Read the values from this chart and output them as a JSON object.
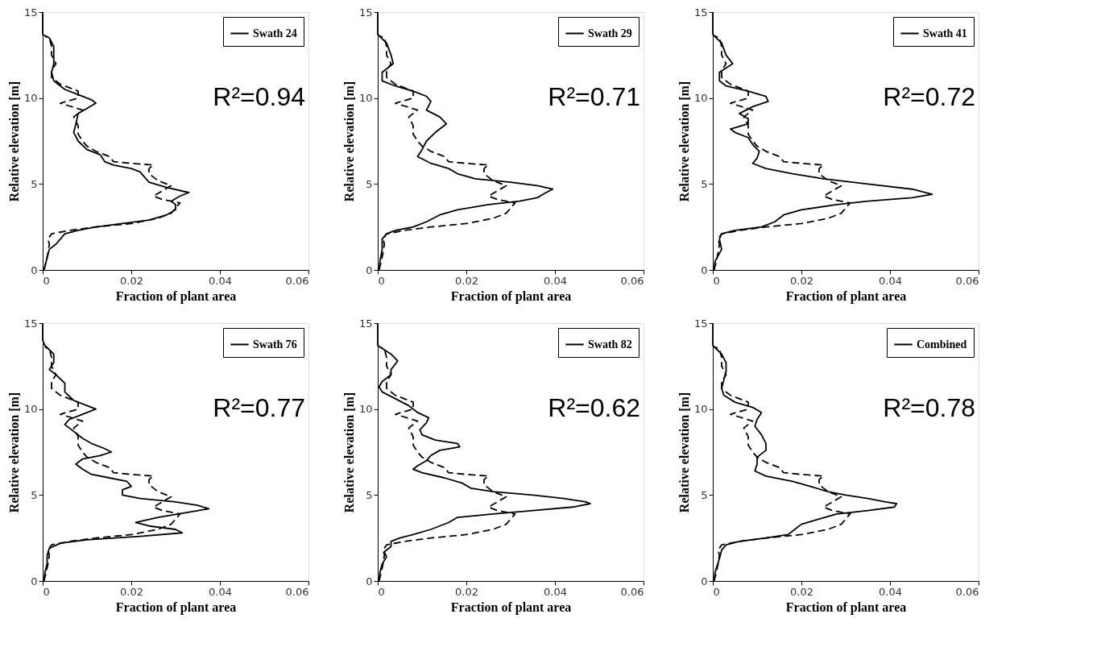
{
  "chart_data": [
    {
      "type": "line",
      "xlabel": "Fraction of plant area",
      "ylabel": "Relative elevation [m]",
      "xlim": [
        0,
        0.06
      ],
      "ylim": [
        0,
        15
      ],
      "xticks": [
        0,
        0.02,
        0.04,
        0.06
      ],
      "yticks": [
        0,
        5,
        10,
        15
      ],
      "legend": "top right",
      "annotations": [
        "R²=0.94"
      ],
      "series": [
        {
          "name": "Swath 24",
          "color": "#000000",
          "line_style": "solid",
          "x": [
            0,
            0,
            0.0015,
            0.0025,
            0.0025,
            0.0025,
            0.002,
            0.0025,
            0.005,
            0.008,
            0.011,
            0.012,
            0.01,
            0.008,
            0.0075,
            0.007,
            0.008,
            0.01,
            0.013,
            0.014,
            0.016,
            0.02,
            0.022,
            0.023,
            0.024,
            0.028,
            0.033,
            0.031,
            0.029,
            0.03,
            0.03,
            0.028,
            0.024,
            0.018,
            0.012,
            0.008,
            0.005,
            0.004,
            0.003,
            0.0015,
            0.0008,
            0.0003
          ],
          "values": [
            15,
            13.7,
            13.5,
            13,
            12.5,
            12,
            11.5,
            11,
            10.5,
            10.2,
            9.9,
            9.7,
            9.4,
            9.1,
            8.5,
            8,
            7.5,
            7,
            6.7,
            6.3,
            6.1,
            5.9,
            5.7,
            5.4,
            5.1,
            4.8,
            4.5,
            4.3,
            4,
            3.8,
            3.5,
            3.2,
            2.9,
            2.7,
            2.5,
            2.3,
            2.1,
            1.8,
            1.5,
            1.2,
            0.5,
            0
          ]
        },
        {
          "color": "#000000",
          "line_style": "dashed",
          "x": [
            0.0003,
            0.0008,
            0.0012,
            0.0015,
            0.0012,
            0.002,
            0.006,
            0.012,
            0.02,
            0.026,
            0.029,
            0.03,
            0.031,
            0.027,
            0.025,
            0.027,
            0.029,
            0.026,
            0.024,
            0.024,
            0.025,
            0.02,
            0.016,
            0.015,
            0.012,
            0.01,
            0.009,
            0.008,
            0.008,
            0.007,
            0.009,
            0.004,
            0.008,
            0.008,
            0.004,
            0.002,
            0.002,
            0.003,
            0.002,
            0.002,
            0.0015,
            0.0005
          ],
          "values": [
            0,
            0.5,
            1,
            1.5,
            1.8,
            2.1,
            2.3,
            2.5,
            2.7,
            3,
            3.3,
            3.6,
            3.9,
            4.1,
            4.3,
            4.6,
            4.9,
            5.2,
            5.6,
            5.9,
            6.1,
            6.2,
            6.3,
            6.6,
            6.9,
            7.2,
            7.5,
            7.9,
            8.4,
            8.9,
            9.3,
            9.7,
            10,
            10.4,
            10.8,
            11.2,
            11.6,
            12,
            12.5,
            13,
            13.5,
            13.6
          ]
        }
      ]
    },
    {
      "type": "line",
      "xlabel": "Fraction of plant area",
      "ylabel": "Relative elevation [m]",
      "xlim": [
        0,
        0.06
      ],
      "ylim": [
        0,
        15
      ],
      "xticks": [
        0,
        0.02,
        0.04,
        0.06
      ],
      "yticks": [
        0,
        5,
        10,
        15
      ],
      "legend": "top right",
      "annotations": [
        "R²=0.71"
      ],
      "series": [
        {
          "name": "Swath 29",
          "color": "#000000",
          "line_style": "solid",
          "x": [
            0,
            0,
            0.002,
            0.003,
            0.0035,
            0.001,
            0.001,
            0.004,
            0.008,
            0.011,
            0.012,
            0.011,
            0.014,
            0.0155,
            0.013,
            0.011,
            0.01,
            0.009,
            0.012,
            0.016,
            0.018,
            0.022,
            0.03,
            0.036,
            0.0395,
            0.038,
            0.036,
            0.032,
            0.025,
            0.018,
            0.014,
            0.011,
            0.008,
            0.004,
            0.002,
            0.001,
            0.001,
            0.0005,
            0.0003
          ],
          "values": [
            15,
            13.7,
            13.2,
            12.5,
            12,
            11.5,
            11,
            10.7,
            10.4,
            10.1,
            9.8,
            9.3,
            8.9,
            8.5,
            8,
            7.5,
            7,
            6.6,
            6.2,
            5.9,
            5.6,
            5.3,
            5.1,
            4.9,
            4.7,
            4.5,
            4.2,
            4,
            3.8,
            3.5,
            3.2,
            2.8,
            2.5,
            2.3,
            2.1,
            1.8,
            1.2,
            0.5,
            0
          ]
        },
        {
          "color": "#000000",
          "line_style": "dashed",
          "x": [
            0.0003,
            0.0008,
            0.0012,
            0.0015,
            0.0012,
            0.002,
            0.006,
            0.012,
            0.02,
            0.026,
            0.029,
            0.03,
            0.031,
            0.027,
            0.025,
            0.027,
            0.029,
            0.026,
            0.024,
            0.024,
            0.025,
            0.02,
            0.016,
            0.015,
            0.012,
            0.01,
            0.009,
            0.008,
            0.008,
            0.007,
            0.009,
            0.004,
            0.008,
            0.008,
            0.004,
            0.002,
            0.002,
            0.003,
            0.002,
            0.002,
            0.0015,
            0.0005
          ],
          "values": [
            0,
            0.5,
            1,
            1.5,
            1.8,
            2.1,
            2.3,
            2.5,
            2.7,
            3,
            3.3,
            3.6,
            3.9,
            4.1,
            4.3,
            4.6,
            4.9,
            5.2,
            5.6,
            5.9,
            6.1,
            6.2,
            6.3,
            6.6,
            6.9,
            7.2,
            7.5,
            7.9,
            8.4,
            8.9,
            9.3,
            9.7,
            10,
            10.4,
            10.8,
            11.2,
            11.6,
            12,
            12.5,
            13,
            13.5,
            13.6
          ]
        }
      ]
    },
    {
      "type": "line",
      "xlabel": "Fraction of plant area",
      "ylabel": "Relative elevation [m]",
      "xlim": [
        0,
        0.06
      ],
      "ylim": [
        0,
        15
      ],
      "xticks": [
        0,
        0.02,
        0.04,
        0.06
      ],
      "yticks": [
        0,
        5,
        10,
        15
      ],
      "legend": "top right",
      "annotations": [
        "R²=0.72"
      ],
      "series": [
        {
          "name": "Swath 41",
          "color": "#000000",
          "line_style": "solid",
          "x": [
            0,
            0,
            0.002,
            0.003,
            0.0045,
            0.0015,
            0.0015,
            0.003,
            0.008,
            0.012,
            0.0125,
            0.009,
            0.006,
            0.008,
            0.008,
            0.004,
            0.005,
            0.008,
            0.009,
            0.0105,
            0.01,
            0.009,
            0.012,
            0.018,
            0.025,
            0.035,
            0.045,
            0.0495,
            0.045,
            0.035,
            0.028,
            0.02,
            0.016,
            0.014,
            0.011,
            0.005,
            0.002,
            0.0015,
            0.002,
            0.0005,
            0.0003
          ],
          "values": [
            15,
            13.7,
            13.2,
            12.5,
            12,
            11.5,
            11,
            10.7,
            10.4,
            10.1,
            9.8,
            9.5,
            9.1,
            8.8,
            8.5,
            8.2,
            8,
            7.7,
            7.3,
            6.9,
            6.5,
            6.2,
            5.9,
            5.6,
            5.3,
            5,
            4.7,
            4.4,
            4.2,
            4,
            3.8,
            3.5,
            3.2,
            2.8,
            2.5,
            2.3,
            2.1,
            1.8,
            1.2,
            0.5,
            0
          ]
        },
        {
          "color": "#000000",
          "line_style": "dashed",
          "x": [
            0.0003,
            0.0008,
            0.0012,
            0.0015,
            0.0012,
            0.002,
            0.006,
            0.012,
            0.02,
            0.026,
            0.029,
            0.03,
            0.031,
            0.027,
            0.025,
            0.027,
            0.029,
            0.026,
            0.024,
            0.024,
            0.025,
            0.02,
            0.016,
            0.015,
            0.012,
            0.01,
            0.009,
            0.008,
            0.008,
            0.007,
            0.009,
            0.004,
            0.008,
            0.008,
            0.004,
            0.002,
            0.002,
            0.003,
            0.002,
            0.002,
            0.0015,
            0.0005
          ],
          "values": [
            0,
            0.5,
            1,
            1.5,
            1.8,
            2.1,
            2.3,
            2.5,
            2.7,
            3,
            3.3,
            3.6,
            3.9,
            4.1,
            4.3,
            4.6,
            4.9,
            5.2,
            5.6,
            5.9,
            6.1,
            6.2,
            6.3,
            6.6,
            6.9,
            7.2,
            7.5,
            7.9,
            8.4,
            8.9,
            9.3,
            9.7,
            10,
            10.4,
            10.8,
            11.2,
            11.6,
            12,
            12.5,
            13,
            13.5,
            13.6
          ]
        }
      ]
    },
    {
      "type": "line",
      "xlabel": "Fraction of plant area",
      "ylabel": "Relative elevation [m]",
      "xlim": [
        0,
        0.06
      ],
      "ylim": [
        0,
        15
      ],
      "xticks": [
        0,
        0.02,
        0.04,
        0.06
      ],
      "yticks": [
        0,
        5,
        10,
        15
      ],
      "legend": "top right",
      "annotations": [
        "R²=0.77"
      ],
      "series": [
        {
          "name": "Swath 76",
          "color": "#000000",
          "line_style": "solid",
          "x": [
            0,
            0,
            0.0005,
            0.0025,
            0.0025,
            0.0015,
            0.003,
            0.005,
            0.005,
            0.007,
            0.01,
            0.012,
            0.009,
            0.006,
            0.005,
            0.007,
            0.009,
            0.011,
            0.014,
            0.0155,
            0.013,
            0.009,
            0.0075,
            0.009,
            0.011,
            0.015,
            0.019,
            0.02,
            0.018,
            0.018,
            0.022,
            0.03,
            0.035,
            0.0375,
            0.033,
            0.026,
            0.021,
            0.024,
            0.03,
            0.0315,
            0.022,
            0.01,
            0.004,
            0.0015,
            0.001,
            0.001,
            0.0005,
            0.0003
          ],
          "values": [
            15,
            14,
            13.7,
            13.2,
            12.7,
            12.3,
            12,
            11.5,
            11,
            10.5,
            10.2,
            10,
            9.7,
            9.4,
            9.1,
            8.7,
            8.3,
            8,
            7.7,
            7.5,
            7.3,
            7.1,
            6.8,
            6.5,
            6.2,
            6,
            5.8,
            5.5,
            5.3,
            5,
            4.8,
            4.6,
            4.4,
            4.2,
            4,
            3.7,
            3.4,
            3.2,
            3,
            2.8,
            2.6,
            2.4,
            2.2,
            1.9,
            1.5,
            1,
            0.5,
            0
          ]
        },
        {
          "color": "#000000",
          "line_style": "dashed",
          "x": [
            0.0003,
            0.0008,
            0.0012,
            0.0015,
            0.0012,
            0.002,
            0.006,
            0.012,
            0.02,
            0.026,
            0.029,
            0.03,
            0.031,
            0.027,
            0.025,
            0.027,
            0.029,
            0.026,
            0.024,
            0.024,
            0.025,
            0.02,
            0.016,
            0.015,
            0.012,
            0.01,
            0.009,
            0.008,
            0.008,
            0.007,
            0.009,
            0.004,
            0.008,
            0.008,
            0.004,
            0.002,
            0.002,
            0.003,
            0.002,
            0.002,
            0.0015,
            0.0005
          ],
          "values": [
            0,
            0.5,
            1,
            1.5,
            1.8,
            2.1,
            2.3,
            2.5,
            2.7,
            3,
            3.3,
            3.6,
            3.9,
            4.1,
            4.3,
            4.6,
            4.9,
            5.2,
            5.6,
            5.9,
            6.1,
            6.2,
            6.3,
            6.6,
            6.9,
            7.2,
            7.5,
            7.9,
            8.4,
            8.9,
            9.3,
            9.7,
            10,
            10.4,
            10.8,
            11.2,
            11.6,
            12,
            12.5,
            13,
            13.5,
            13.6
          ]
        }
      ]
    },
    {
      "type": "line",
      "xlabel": "Fraction of plant area",
      "ylabel": "Relative elevation [m]",
      "xlim": [
        0,
        0.06
      ],
      "ylim": [
        0,
        15
      ],
      "xticks": [
        0,
        0.02,
        0.04,
        0.06
      ],
      "yticks": [
        0,
        5,
        10,
        15
      ],
      "legend": "top right",
      "annotations": [
        "R²=0.62"
      ],
      "series": [
        {
          "name": "Swath 82",
          "color": "#000000",
          "line_style": "solid",
          "x": [
            0,
            0,
            0.003,
            0.0045,
            0.003,
            0.003,
            0.001,
            0.0003,
            0.001,
            0.004,
            0.007,
            0.009,
            0.0115,
            0.011,
            0.0095,
            0.01,
            0.013,
            0.018,
            0.0185,
            0.014,
            0.012,
            0.011,
            0.009,
            0.008,
            0.01,
            0.015,
            0.019,
            0.021,
            0.026,
            0.035,
            0.042,
            0.047,
            0.048,
            0.044,
            0.035,
            0.026,
            0.018,
            0.016,
            0.012,
            0.008,
            0.005,
            0.003,
            0.003,
            0.0015,
            0.002,
            0.001,
            0.0005,
            0.0003
          ],
          "values": [
            15,
            13.7,
            13.2,
            12.8,
            12.3,
            12,
            11.6,
            11.3,
            11,
            10.6,
            10.2,
            9.8,
            9.5,
            9.2,
            8.8,
            8.5,
            8.2,
            8,
            7.8,
            7.6,
            7.3,
            7,
            6.7,
            6.5,
            6.3,
            6,
            5.7,
            5.4,
            5.2,
            5,
            4.8,
            4.6,
            4.5,
            4.3,
            4.1,
            3.9,
            3.7,
            3.4,
            3,
            2.7,
            2.5,
            2.3,
            2,
            1.7,
            1.4,
            1,
            0.5,
            0
          ]
        },
        {
          "color": "#000000",
          "line_style": "dashed",
          "x": [
            0.0003,
            0.0008,
            0.0012,
            0.0015,
            0.0012,
            0.002,
            0.006,
            0.012,
            0.02,
            0.026,
            0.029,
            0.03,
            0.031,
            0.027,
            0.025,
            0.027,
            0.029,
            0.026,
            0.024,
            0.024,
            0.025,
            0.02,
            0.016,
            0.015,
            0.012,
            0.01,
            0.009,
            0.008,
            0.008,
            0.007,
            0.009,
            0.004,
            0.008,
            0.008,
            0.004,
            0.002,
            0.002,
            0.003,
            0.002,
            0.002,
            0.0015,
            0.0005
          ],
          "values": [
            0,
            0.5,
            1,
            1.5,
            1.8,
            2.1,
            2.3,
            2.5,
            2.7,
            3,
            3.3,
            3.6,
            3.9,
            4.1,
            4.3,
            4.6,
            4.9,
            5.2,
            5.6,
            5.9,
            6.1,
            6.2,
            6.3,
            6.6,
            6.9,
            7.2,
            7.5,
            7.9,
            8.4,
            8.9,
            9.3,
            9.7,
            10,
            10.4,
            10.8,
            11.2,
            11.6,
            12,
            12.5,
            13,
            13.5,
            13.6
          ]
        }
      ]
    },
    {
      "type": "line",
      "xlabel": "Fraction of plant area",
      "ylabel": "Relative elevation [m]",
      "xlim": [
        0,
        0.06
      ],
      "ylim": [
        0,
        15
      ],
      "xticks": [
        0,
        0.02,
        0.04,
        0.06
      ],
      "yticks": [
        0,
        5,
        10,
        15
      ],
      "legend": "top right",
      "annotations": [
        "R²=0.78"
      ],
      "series": [
        {
          "name": "Combined",
          "color": "#000000",
          "line_style": "solid",
          "x": [
            0,
            0,
            0.002,
            0.003,
            0.003,
            0.0025,
            0.002,
            0.0025,
            0.005,
            0.009,
            0.011,
            0.01,
            0.0095,
            0.011,
            0.012,
            0.012,
            0.01,
            0.01,
            0.0095,
            0.012,
            0.018,
            0.022,
            0.026,
            0.03,
            0.035,
            0.039,
            0.0415,
            0.041,
            0.035,
            0.028,
            0.024,
            0.02,
            0.0185,
            0.017,
            0.012,
            0.006,
            0.003,
            0.002,
            0.0015,
            0.0005,
            0.0003
          ],
          "values": [
            15,
            13.7,
            13.2,
            12.7,
            12.2,
            11.7,
            11.2,
            10.8,
            10.4,
            10.1,
            9.8,
            9.4,
            9,
            8.5,
            8,
            7.6,
            7.2,
            6.8,
            6.4,
            6.1,
            5.8,
            5.5,
            5.2,
            5,
            4.8,
            4.6,
            4.5,
            4.3,
            4.1,
            3.9,
            3.6,
            3.3,
            3,
            2.7,
            2.5,
            2.3,
            2.1,
            1.8,
            1.3,
            0.5,
            0
          ]
        },
        {
          "color": "#000000",
          "line_style": "dashed",
          "x": [
            0.0003,
            0.0008,
            0.0012,
            0.0015,
            0.0012,
            0.002,
            0.006,
            0.012,
            0.02,
            0.026,
            0.029,
            0.03,
            0.031,
            0.027,
            0.025,
            0.027,
            0.029,
            0.026,
            0.024,
            0.024,
            0.025,
            0.02,
            0.016,
            0.015,
            0.012,
            0.01,
            0.009,
            0.008,
            0.008,
            0.007,
            0.009,
            0.004,
            0.008,
            0.008,
            0.004,
            0.002,
            0.002,
            0.003,
            0.002,
            0.002,
            0.0015,
            0.0005
          ],
          "values": [
            0,
            0.5,
            1,
            1.5,
            1.8,
            2.1,
            2.3,
            2.5,
            2.7,
            3,
            3.3,
            3.6,
            3.9,
            4.1,
            4.3,
            4.6,
            4.9,
            5.2,
            5.6,
            5.9,
            6.1,
            6.2,
            6.3,
            6.6,
            6.9,
            7.2,
            7.5,
            7.9,
            8.4,
            8.9,
            9.3,
            9.7,
            10,
            10.4,
            10.8,
            11.2,
            11.6,
            12,
            12.5,
            13,
            13.5,
            13.6
          ]
        }
      ]
    }
  ]
}
